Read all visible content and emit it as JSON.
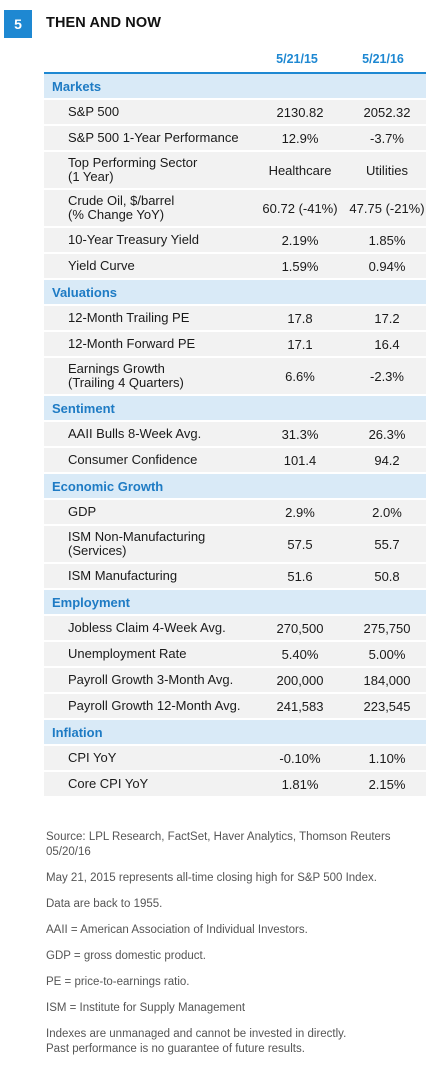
{
  "figure": {
    "number": "5",
    "title": "THEN AND NOW"
  },
  "columns": [
    "5/21/15",
    "5/21/16"
  ],
  "rows": [
    {
      "type": "section",
      "label": "Markets"
    },
    {
      "type": "data",
      "label_lines": [
        "S&P 500"
      ],
      "v1": "2130.82",
      "v2": "2052.32"
    },
    {
      "type": "data",
      "label_lines": [
        "S&P 500 1-Year Performance"
      ],
      "v1": "12.9%",
      "v2": "-3.7%"
    },
    {
      "type": "data",
      "label_lines": [
        "Top Performing Sector",
        "(1 Year)"
      ],
      "v1": "Healthcare",
      "v2": "Utilities"
    },
    {
      "type": "data",
      "label_lines": [
        "Crude Oil, $/barrel",
        "(% Change YoY)"
      ],
      "v1": "60.72 (-41%)",
      "v2": "47.75 (-21%)"
    },
    {
      "type": "data",
      "label_lines": [
        "10-Year Treasury Yield"
      ],
      "v1": "2.19%",
      "v2": "1.85%"
    },
    {
      "type": "data",
      "label_lines": [
        "Yield Curve"
      ],
      "v1": "1.59%",
      "v2": "0.94%"
    },
    {
      "type": "section",
      "label": "Valuations"
    },
    {
      "type": "data",
      "label_lines": [
        "12-Month Trailing PE"
      ],
      "v1": "17.8",
      "v2": "17.2"
    },
    {
      "type": "data",
      "label_lines": [
        "12-Month Forward PE"
      ],
      "v1": "17.1",
      "v2": "16.4"
    },
    {
      "type": "data",
      "label_lines": [
        "Earnings Growth",
        "(Trailing 4 Quarters)"
      ],
      "v1": "6.6%",
      "v2": "-2.3%"
    },
    {
      "type": "section",
      "label": "Sentiment"
    },
    {
      "type": "data",
      "label_lines": [
        "AAII Bulls 8-Week Avg."
      ],
      "v1": "31.3%",
      "v2": "26.3%"
    },
    {
      "type": "data",
      "label_lines": [
        "Consumer Confidence"
      ],
      "v1": "101.4",
      "v2": "94.2"
    },
    {
      "type": "section",
      "label": "Economic Growth"
    },
    {
      "type": "data",
      "label_lines": [
        "GDP"
      ],
      "v1": "2.9%",
      "v2": "2.0%"
    },
    {
      "type": "data",
      "label_lines": [
        "ISM Non-Manufacturing",
        "(Services)"
      ],
      "v1": "57.5",
      "v2": "55.7"
    },
    {
      "type": "data",
      "label_lines": [
        "ISM Manufacturing"
      ],
      "v1": "51.6",
      "v2": "50.8"
    },
    {
      "type": "section",
      "label": "Employment"
    },
    {
      "type": "data",
      "label_lines": [
        "Jobless Claim 4-Week Avg."
      ],
      "v1": "270,500",
      "v2": "275,750"
    },
    {
      "type": "data",
      "label_lines": [
        "Unemployment Rate"
      ],
      "v1": "5.40%",
      "v2": "5.00%"
    },
    {
      "type": "data",
      "label_lines": [
        "Payroll Growth 3-Month Avg."
      ],
      "v1": "200,000",
      "v2": "184,000"
    },
    {
      "type": "data",
      "label_lines": [
        "Payroll Growth 12-Month Avg."
      ],
      "v1": "241,583",
      "v2": "223,545"
    },
    {
      "type": "section",
      "label": "Inflation"
    },
    {
      "type": "data",
      "label_lines": [
        "CPI YoY"
      ],
      "v1": "-0.10%",
      "v2": "1.10%"
    },
    {
      "type": "data",
      "label_lines": [
        "Core CPI YoY"
      ],
      "v1": "1.81%",
      "v2": "2.15%"
    }
  ],
  "footnotes": [
    [
      "Source: LPL Research, FactSet, Haver Analytics, Thomson Reuters",
      "05/20/16"
    ],
    [
      "May 21, 2015 represents all-time closing high for S&P 500 Index."
    ],
    [
      "Data are back to 1955."
    ],
    [
      "AAII = American Association of Individual Investors."
    ],
    [
      "GDP = gross domestic product."
    ],
    [
      "PE = price-to-earnings ratio."
    ],
    [
      "ISM = Institute for Supply Management"
    ],
    [
      "Indexes are unmanaged and cannot be invested in directly.",
      "Past performance is no guarantee of future results."
    ]
  ]
}
